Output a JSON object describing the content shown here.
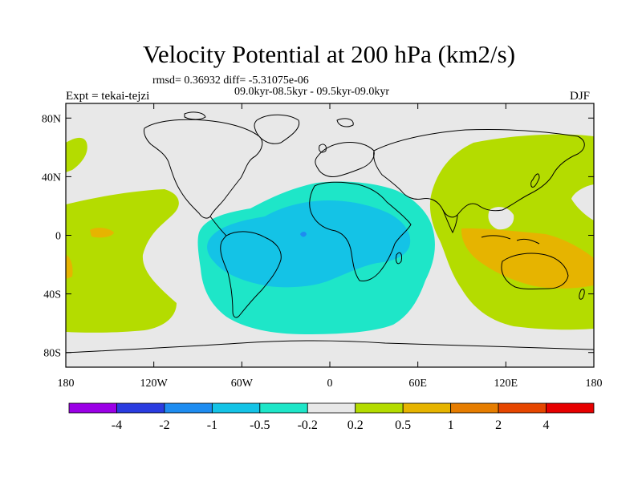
{
  "title": "Velocity Potential at 200 hPa (km2/s)",
  "stats_line": "rmsd= 0.36932  diff= -5.31075e-06",
  "period_line": "09.0kyr-08.5kyr - 09.5kyr-09.0kyr",
  "experiment_label": "Expt = tekai-tejzi",
  "season_label": "DJF",
  "map": {
    "lon_labels": [
      "180",
      "120W",
      "60W",
      "0",
      "60E",
      "120E",
      "180"
    ],
    "lon_values": [
      -180,
      -120,
      -60,
      0,
      60,
      120,
      180
    ],
    "lat_labels": [
      "80N",
      "40N",
      "0",
      "40S",
      "80S"
    ],
    "lat_values": [
      80,
      40,
      0,
      -40,
      -80
    ],
    "lat_range": [
      -90,
      90
    ],
    "lon_range": [
      -180,
      180
    ],
    "field_description_regions": [
      {
        "name": "negative-core",
        "level": "-2",
        "lon": -25,
        "lat": 0
      },
      {
        "name": "positive-west-pacific",
        "level": "1",
        "lon": 140,
        "lat": -20
      }
    ]
  },
  "colorbar": {
    "labels": [
      "-4",
      "-2",
      "-1",
      "-0.5",
      "-0.2",
      "0.2",
      "0.5",
      "1",
      "2",
      "4"
    ],
    "colors": [
      "#9b00e6",
      "#2a3ce0",
      "#1e8cf0",
      "#14c3e6",
      "#1ee6c8",
      "#e8e8e8",
      "#b4dc00",
      "#e6b400",
      "#e67d00",
      "#e64600",
      "#e60000"
    ]
  }
}
